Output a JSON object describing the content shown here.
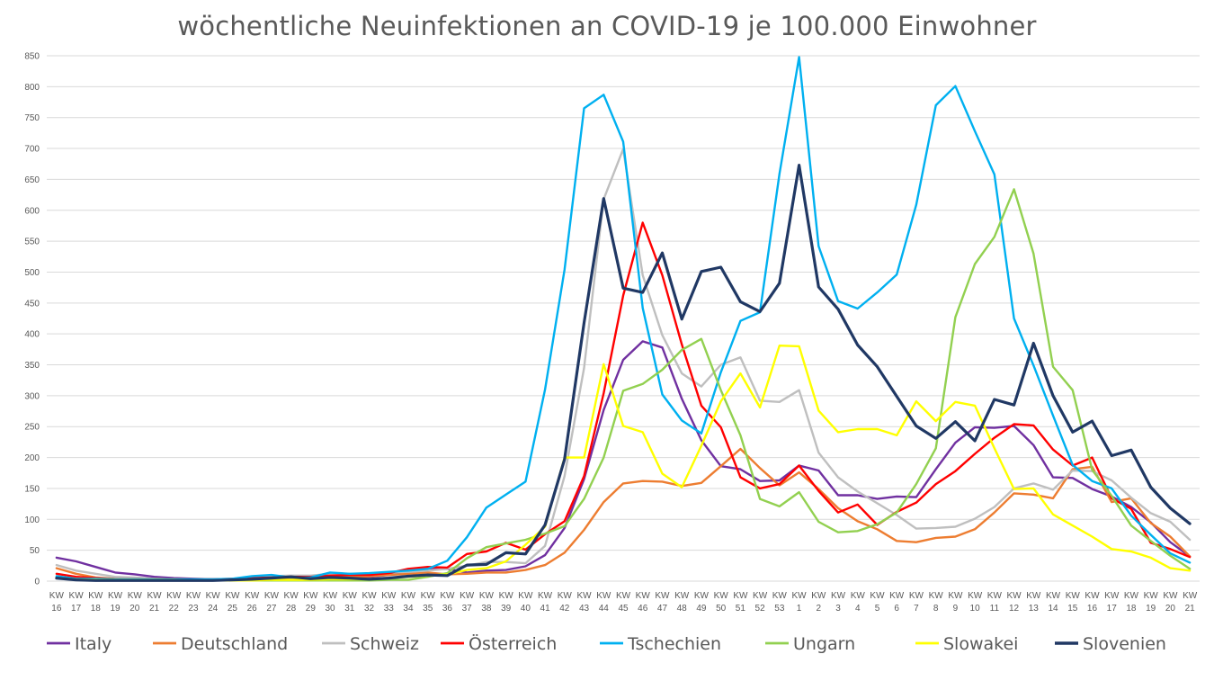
{
  "chart_data": {
    "type": "line",
    "title": "wöchentliche Neuinfektionen an COVID-19 je 100.000 Einwohner",
    "xlabel": "",
    "ylabel": "",
    "ylim": [
      0,
      850
    ],
    "yticks": [
      0,
      50,
      100,
      150,
      200,
      250,
      300,
      350,
      400,
      450,
      500,
      550,
      600,
      650,
      700,
      750,
      800,
      850
    ],
    "grid": true,
    "legend": "bottom",
    "x_prefix": "KW",
    "categories": [
      "16",
      "17",
      "18",
      "19",
      "20",
      "21",
      "22",
      "23",
      "24",
      "25",
      "26",
      "27",
      "28",
      "29",
      "30",
      "31",
      "32",
      "33",
      "34",
      "35",
      "36",
      "37",
      "38",
      "39",
      "40",
      "41",
      "42",
      "43",
      "44",
      "45",
      "46",
      "47",
      "48",
      "49",
      "50",
      "51",
      "52",
      "53",
      "1",
      "2",
      "3",
      "4",
      "5",
      "6",
      "7",
      "8",
      "9",
      "10",
      "11",
      "12",
      "13",
      "14",
      "15",
      "16",
      "17",
      "18",
      "19",
      "20",
      "21"
    ],
    "series": [
      {
        "name": "Italy",
        "color": "#7030A0",
        "values": [
          38,
          32,
          23,
          14,
          11,
          7,
          5,
          4,
          3,
          3,
          4,
          5,
          6,
          5,
          8,
          8,
          7,
          10,
          15,
          19,
          20,
          14,
          17,
          18,
          24,
          42,
          86,
          165,
          277,
          358,
          388,
          378,
          295,
          228,
          186,
          181,
          162,
          163,
          187,
          179,
          139,
          139,
          133,
          137,
          136,
          181,
          224,
          249,
          248,
          251,
          220,
          168,
          167,
          149,
          137,
          120,
          95,
          63,
          40
        ]
      },
      {
        "name": "Deutschland",
        "color": "#ED7D31",
        "values": [
          21,
          12,
          6,
          4,
          4,
          4,
          3,
          2,
          2,
          2,
          3,
          3,
          4,
          5,
          6,
          7,
          8,
          10,
          12,
          14,
          11,
          12,
          14,
          14,
          18,
          26,
          46,
          83,
          128,
          158,
          162,
          161,
          154,
          159,
          186,
          214,
          183,
          155,
          176,
          149,
          118,
          97,
          84,
          65,
          63,
          70,
          72,
          84,
          111,
          142,
          140,
          134,
          181,
          185,
          128,
          134,
          94,
          72,
          40
        ]
      },
      {
        "name": "Schweiz",
        "color": "#BFBFBF",
        "values": [
          26,
          17,
          12,
          7,
          6,
          4,
          3,
          3,
          3,
          3,
          5,
          8,
          9,
          9,
          12,
          12,
          12,
          14,
          15,
          17,
          20,
          25,
          31,
          31,
          29,
          57,
          170,
          345,
          618,
          699,
          495,
          398,
          336,
          315,
          350,
          362,
          292,
          290,
          309,
          208,
          168,
          145,
          126,
          107,
          85,
          86,
          88,
          101,
          120,
          150,
          158,
          148,
          179,
          178,
          163,
          135,
          110,
          96,
          67
        ]
      },
      {
        "name": "Österreich",
        "color": "#FF0000",
        "values": [
          12,
          7,
          5,
          3,
          3,
          3,
          3,
          3,
          3,
          4,
          5,
          6,
          7,
          7,
          9,
          10,
          10,
          13,
          20,
          23,
          22,
          44,
          48,
          62,
          51,
          76,
          97,
          170,
          304,
          462,
          580,
          495,
          383,
          284,
          249,
          168,
          150,
          157,
          187,
          146,
          111,
          124,
          91,
          112,
          127,
          157,
          178,
          206,
          232,
          254,
          252,
          213,
          187,
          200,
          134,
          117,
          62,
          52,
          39
        ]
      },
      {
        "name": "Tschechien",
        "color": "#00B0F0",
        "values": [
          8,
          4,
          4,
          3,
          3,
          3,
          3,
          3,
          3,
          4,
          8,
          10,
          6,
          6,
          14,
          12,
          13,
          15,
          17,
          20,
          33,
          71,
          119,
          140,
          161,
          310,
          504,
          765,
          787,
          711,
          442,
          302,
          260,
          239,
          338,
          421,
          435,
          659,
          848,
          542,
          453,
          441,
          467,
          496,
          609,
          770,
          801,
          728,
          658,
          425,
          349,
          268,
          188,
          162,
          150,
          106,
          75,
          45,
          30
        ]
      },
      {
        "name": "Ungarn",
        "color": "#92D050",
        "values": [
          5,
          3,
          2,
          2,
          2,
          2,
          2,
          1,
          1,
          1,
          1,
          1,
          1,
          1,
          1,
          1,
          1,
          2,
          2,
          7,
          13,
          37,
          55,
          61,
          67,
          77,
          89,
          133,
          200,
          308,
          319,
          342,
          374,
          392,
          309,
          236,
          133,
          121,
          144,
          96,
          79,
          81,
          92,
          111,
          157,
          215,
          427,
          513,
          557,
          634,
          530,
          347,
          309,
          180,
          138,
          90,
          65,
          41,
          20
        ]
      },
      {
        "name": "Slowakei",
        "color": "#FFFF00",
        "values": [
          5,
          2,
          2,
          1,
          1,
          1,
          1,
          1,
          1,
          1,
          1,
          2,
          2,
          2,
          3,
          3,
          3,
          5,
          7,
          9,
          11,
          18,
          21,
          32,
          59,
          88,
          200,
          200,
          351,
          251,
          241,
          174,
          152,
          219,
          291,
          336,
          281,
          381,
          380,
          276,
          241,
          246,
          246,
          236,
          291,
          259,
          290,
          284,
          215,
          149,
          150,
          108,
          90,
          72,
          52,
          48,
          38,
          21,
          17
        ]
      },
      {
        "name": "Slovenien",
        "color": "#203864",
        "values": [
          5,
          2,
          1,
          1,
          1,
          1,
          1,
          1,
          1,
          2,
          3,
          5,
          7,
          4,
          6,
          5,
          3,
          5,
          8,
          10,
          9,
          26,
          27,
          46,
          44,
          91,
          197,
          418,
          619,
          474,
          467,
          531,
          424,
          501,
          508,
          452,
          436,
          482,
          673,
          476,
          440,
          382,
          347,
          299,
          251,
          231,
          258,
          227,
          294,
          285,
          385,
          300,
          241,
          259,
          203,
          212,
          152,
          118,
          93
        ]
      }
    ]
  }
}
